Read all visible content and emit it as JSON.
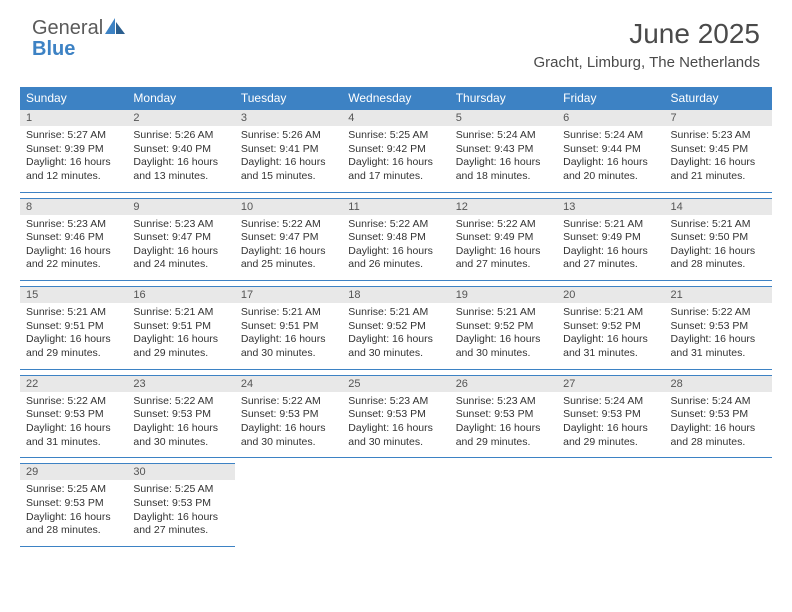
{
  "logo": {
    "general": "General",
    "blue": "Blue"
  },
  "title": "June 2025",
  "location": "Gracht, Limburg, The Netherlands",
  "colors": {
    "header_bg": "#3d82c4",
    "header_text": "#ffffff",
    "daynum_bg": "#e8e8e8",
    "border": "#3d82c4",
    "text": "#333333"
  },
  "weekdays": [
    "Sunday",
    "Monday",
    "Tuesday",
    "Wednesday",
    "Thursday",
    "Friday",
    "Saturday"
  ],
  "days": [
    {
      "n": "1",
      "sr": "5:27 AM",
      "ss": "9:39 PM",
      "dl": "16 hours and 12 minutes."
    },
    {
      "n": "2",
      "sr": "5:26 AM",
      "ss": "9:40 PM",
      "dl": "16 hours and 13 minutes."
    },
    {
      "n": "3",
      "sr": "5:26 AM",
      "ss": "9:41 PM",
      "dl": "16 hours and 15 minutes."
    },
    {
      "n": "4",
      "sr": "5:25 AM",
      "ss": "9:42 PM",
      "dl": "16 hours and 17 minutes."
    },
    {
      "n": "5",
      "sr": "5:24 AM",
      "ss": "9:43 PM",
      "dl": "16 hours and 18 minutes."
    },
    {
      "n": "6",
      "sr": "5:24 AM",
      "ss": "9:44 PM",
      "dl": "16 hours and 20 minutes."
    },
    {
      "n": "7",
      "sr": "5:23 AM",
      "ss": "9:45 PM",
      "dl": "16 hours and 21 minutes."
    },
    {
      "n": "8",
      "sr": "5:23 AM",
      "ss": "9:46 PM",
      "dl": "16 hours and 22 minutes."
    },
    {
      "n": "9",
      "sr": "5:23 AM",
      "ss": "9:47 PM",
      "dl": "16 hours and 24 minutes."
    },
    {
      "n": "10",
      "sr": "5:22 AM",
      "ss": "9:47 PM",
      "dl": "16 hours and 25 minutes."
    },
    {
      "n": "11",
      "sr": "5:22 AM",
      "ss": "9:48 PM",
      "dl": "16 hours and 26 minutes."
    },
    {
      "n": "12",
      "sr": "5:22 AM",
      "ss": "9:49 PM",
      "dl": "16 hours and 27 minutes."
    },
    {
      "n": "13",
      "sr": "5:21 AM",
      "ss": "9:49 PM",
      "dl": "16 hours and 27 minutes."
    },
    {
      "n": "14",
      "sr": "5:21 AM",
      "ss": "9:50 PM",
      "dl": "16 hours and 28 minutes."
    },
    {
      "n": "15",
      "sr": "5:21 AM",
      "ss": "9:51 PM",
      "dl": "16 hours and 29 minutes."
    },
    {
      "n": "16",
      "sr": "5:21 AM",
      "ss": "9:51 PM",
      "dl": "16 hours and 29 minutes."
    },
    {
      "n": "17",
      "sr": "5:21 AM",
      "ss": "9:51 PM",
      "dl": "16 hours and 30 minutes."
    },
    {
      "n": "18",
      "sr": "5:21 AM",
      "ss": "9:52 PM",
      "dl": "16 hours and 30 minutes."
    },
    {
      "n": "19",
      "sr": "5:21 AM",
      "ss": "9:52 PM",
      "dl": "16 hours and 30 minutes."
    },
    {
      "n": "20",
      "sr": "5:21 AM",
      "ss": "9:52 PM",
      "dl": "16 hours and 31 minutes."
    },
    {
      "n": "21",
      "sr": "5:22 AM",
      "ss": "9:53 PM",
      "dl": "16 hours and 31 minutes."
    },
    {
      "n": "22",
      "sr": "5:22 AM",
      "ss": "9:53 PM",
      "dl": "16 hours and 31 minutes."
    },
    {
      "n": "23",
      "sr": "5:22 AM",
      "ss": "9:53 PM",
      "dl": "16 hours and 30 minutes."
    },
    {
      "n": "24",
      "sr": "5:22 AM",
      "ss": "9:53 PM",
      "dl": "16 hours and 30 minutes."
    },
    {
      "n": "25",
      "sr": "5:23 AM",
      "ss": "9:53 PM",
      "dl": "16 hours and 30 minutes."
    },
    {
      "n": "26",
      "sr": "5:23 AM",
      "ss": "9:53 PM",
      "dl": "16 hours and 29 minutes."
    },
    {
      "n": "27",
      "sr": "5:24 AM",
      "ss": "9:53 PM",
      "dl": "16 hours and 29 minutes."
    },
    {
      "n": "28",
      "sr": "5:24 AM",
      "ss": "9:53 PM",
      "dl": "16 hours and 28 minutes."
    },
    {
      "n": "29",
      "sr": "5:25 AM",
      "ss": "9:53 PM",
      "dl": "16 hours and 28 minutes."
    },
    {
      "n": "30",
      "sr": "5:25 AM",
      "ss": "9:53 PM",
      "dl": "16 hours and 27 minutes."
    }
  ],
  "labels": {
    "sunrise": "Sunrise: ",
    "sunset": "Sunset: ",
    "daylight": "Daylight: "
  }
}
